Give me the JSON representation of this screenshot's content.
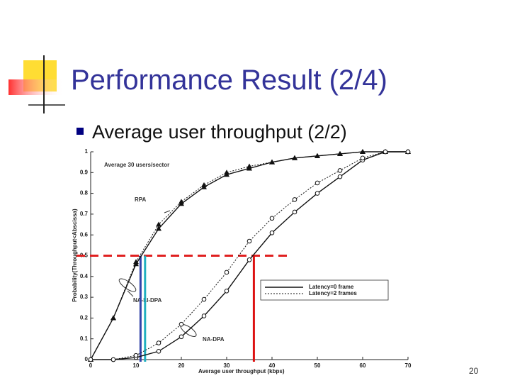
{
  "title": "Performance Result (2/4)",
  "bullet": "Average user throughput (2/2)",
  "page_number": "20",
  "chart_data": {
    "type": "line",
    "xlabel": "Average user throughput (kbps)",
    "ylabel": "Probability(Throughput<Abscissa)",
    "annotations": [
      "Average 30 users/sector",
      "RPA",
      "NA-LI-DPA",
      "NA-DPA"
    ],
    "x": [
      0,
      5,
      10,
      15,
      20,
      25,
      30,
      35,
      40,
      45,
      50,
      55,
      60,
      65,
      70
    ],
    "series": [
      {
        "name": "Latency=0 frame",
        "color": "#111111",
        "dash": false,
        "marker": "triangle",
        "values": [
          0,
          0.2,
          0.46,
          0.63,
          0.75,
          0.83,
          0.89,
          0.92,
          0.95,
          0.97,
          0.98,
          0.99,
          1,
          1,
          1
        ]
      },
      {
        "name": "Latency=2 frames",
        "color": "#111111",
        "dash": true,
        "marker": "triangle",
        "values": [
          0,
          0.2,
          0.47,
          0.65,
          0.76,
          0.84,
          0.9,
          0.93,
          0.95,
          0.97,
          0.98,
          0.99,
          1,
          1,
          1
        ]
      },
      {
        "name": "Latency=0 frame",
        "color": "#111111",
        "dash": false,
        "marker": "circle",
        "values": [
          0,
          0,
          0.01,
          0.04,
          0.11,
          0.21,
          0.33,
          0.48,
          0.61,
          0.71,
          0.8,
          0.88,
          0.96,
          1,
          1
        ]
      },
      {
        "name": "Latency=2 frames",
        "color": "#111111",
        "dash": true,
        "marker": "circle",
        "values": [
          0,
          0,
          0.02,
          0.08,
          0.17,
          0.29,
          0.42,
          0.57,
          0.68,
          0.77,
          0.85,
          0.91,
          0.97,
          1,
          1
        ]
      }
    ],
    "xlim": [
      0,
      70
    ],
    "xticks": [
      0,
      10,
      20,
      30,
      40,
      50,
      60,
      70
    ],
    "ylim": [
      0,
      1
    ],
    "yticks": [
      0,
      0.1,
      0.2,
      0.3,
      0.4,
      0.5,
      0.6,
      0.7,
      0.8,
      0.9,
      1
    ],
    "reference_lines": {
      "horizontal": {
        "value": 0.5,
        "color": "#e02020"
      },
      "vertical": [
        {
          "value": 11,
          "color": "#3344aa"
        },
        {
          "value": 12,
          "color": "#20b0c0"
        },
        {
          "value": 36,
          "color": "#dd1111"
        }
      ]
    }
  }
}
